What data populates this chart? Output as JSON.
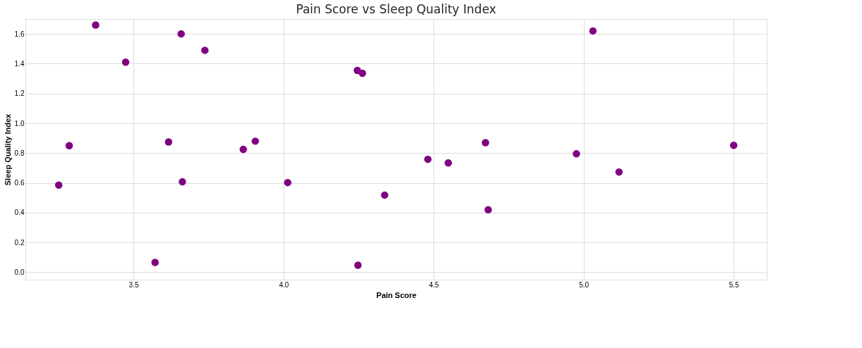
{
  "chart_data": {
    "type": "scatter",
    "title": "Pain Score vs Sleep Quality Index",
    "xlabel": "Pain Score",
    "ylabel": "Sleep Quality Index",
    "x": [
      3.374,
      3.659,
      3.474,
      3.738,
      4.246,
      4.263,
      5.031,
      3.286,
      3.251,
      3.617,
      3.866,
      3.906,
      3.663,
      4.014,
      3.572,
      4.248,
      4.337,
      4.481,
      4.549,
      4.673,
      4.682,
      4.976,
      5.118,
      5.5
    ],
    "series": [
      {
        "color": "#800080",
        "values": [
          1.66,
          1.6,
          1.41,
          1.49,
          1.355,
          1.336,
          1.62,
          0.85,
          0.585,
          0.875,
          0.825,
          0.88,
          0.607,
          0.602,
          0.066,
          0.047,
          0.518,
          0.758,
          0.734,
          0.87,
          0.419,
          0.795,
          0.673,
          0.852
        ]
      }
    ],
    "xlim": [
      3.14,
      5.61
    ],
    "ylim": [
      -0.05,
      1.7
    ],
    "xticks": [
      3.5,
      {
        "value": 4,
        "label": "4.0"
      },
      4.5,
      {
        "value": 5,
        "label": "5.0"
      },
      5.5
    ],
    "yticks": [
      {
        "value": 0,
        "label": "0.0"
      },
      0.2,
      0.4,
      0.6,
      0.8,
      {
        "value": 1,
        "label": "1.0"
      },
      1.2,
      1.4,
      1.6
    ],
    "grid": true,
    "marker": "circle"
  }
}
